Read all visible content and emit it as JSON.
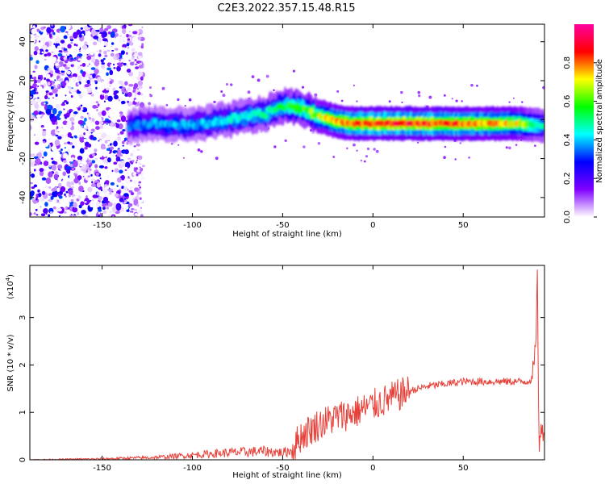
{
  "title": "C2E3.2022.357.15.48.R15",
  "chart_data": [
    {
      "type": "heatmap",
      "xlabel": "Height of straight line (km)",
      "ylabel": "Frequency (Hz)",
      "xlim": [
        -190,
        95
      ],
      "ylim": [
        -50,
        49
      ],
      "xticks": [
        -150,
        -100,
        -50,
        0,
        50
      ],
      "yticks": [
        -40,
        -20,
        0,
        20,
        40
      ],
      "colorbar": {
        "label": "Normalized spectral amplitude",
        "range": [
          0,
          1
        ],
        "ticks": [
          0.0,
          0.2,
          0.4,
          0.6,
          0.8
        ],
        "colors": [
          "#ffffff",
          "#8000ff",
          "#0000ff",
          "#00ffff",
          "#00ff00",
          "#ffff00",
          "#ff0000",
          "#ff00a0"
        ]
      },
      "ridge": {
        "x": [
          -135,
          -120,
          -100,
          -80,
          -60,
          -50,
          -40,
          -30,
          -20,
          -10,
          0,
          20,
          50,
          80,
          92
        ],
        "y": [
          -3,
          -2,
          -3,
          0,
          3,
          7,
          6,
          2,
          -1,
          -2,
          -2,
          -2,
          -2,
          -2,
          -3
        ],
        "amplitude": [
          0.35,
          0.4,
          0.4,
          0.45,
          0.5,
          0.55,
          0.6,
          0.7,
          0.8,
          0.85,
          0.9,
          0.9,
          0.85,
          0.75,
          0.5
        ]
      },
      "noise_region_x": [
        -190,
        -135
      ]
    },
    {
      "type": "line",
      "xlabel": "Height of straight line (km)",
      "ylabel": "SNR (10 * v/v)",
      "yscale_label": "(x10",
      "yscale_exp": "4",
      "xlim": [
        -190,
        95
      ],
      "ylim": [
        0,
        4.1
      ],
      "xticks": [
        -150,
        -100,
        -50,
        0,
        50
      ],
      "yticks": [
        0,
        1,
        2,
        3
      ],
      "color": "#e8413a",
      "series": [
        {
          "x": [
            -190,
            -150,
            -120,
            -100,
            -80,
            -60,
            -50,
            -45,
            -40,
            -30,
            -20,
            -10,
            0,
            10,
            20,
            30,
            40,
            50,
            60,
            70,
            80,
            85,
            88,
            90,
            91,
            92,
            93,
            95
          ],
          "y": [
            0.0,
            0.02,
            0.05,
            0.1,
            0.15,
            0.18,
            0.15,
            0.2,
            0.5,
            0.75,
            0.9,
            1.0,
            1.15,
            1.3,
            1.45,
            1.55,
            1.6,
            1.65,
            1.65,
            1.65,
            1.65,
            1.65,
            1.7,
            2.2,
            4.0,
            0.3,
            0.5,
            0.8
          ]
        }
      ]
    }
  ]
}
